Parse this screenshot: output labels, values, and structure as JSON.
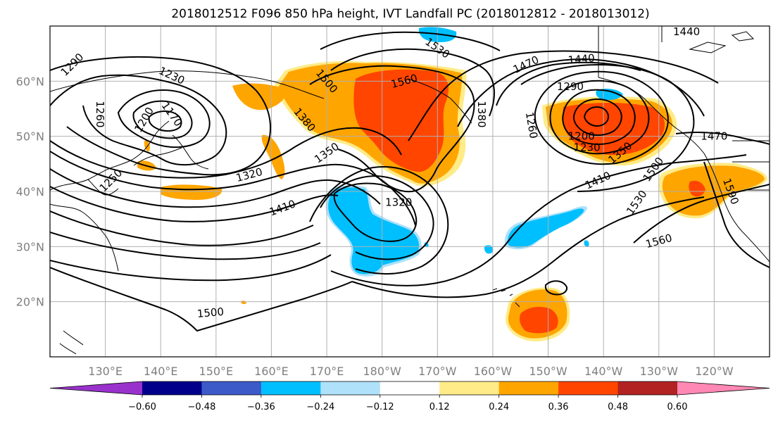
{
  "title": "2018012512 F096 850 hPa height, IVT Landfall PC (2018012812 - 2018013012)",
  "map": {
    "projection": "PlateCarree",
    "lon_range": [
      120,
      250
    ],
    "lat_range": [
      10,
      70
    ],
    "lon_ticks": [
      {
        "lon": 130,
        "label": "130°E"
      },
      {
        "lon": 140,
        "label": "140°E"
      },
      {
        "lon": 150,
        "label": "150°E"
      },
      {
        "lon": 160,
        "label": "160°E"
      },
      {
        "lon": 170,
        "label": "170°E"
      },
      {
        "lon": 180,
        "label": "180°W"
      },
      {
        "lon": 190,
        "label": "170°W"
      },
      {
        "lon": 200,
        "label": "160°W"
      },
      {
        "lon": 210,
        "label": "150°W"
      },
      {
        "lon": 220,
        "label": "140°W"
      },
      {
        "lon": 230,
        "label": "130°W"
      },
      {
        "lon": 240,
        "label": "120°W"
      }
    ],
    "lat_ticks": [
      {
        "lat": 20,
        "label": "20°N"
      },
      {
        "lat": 30,
        "label": "30°N"
      },
      {
        "lat": 40,
        "label": "40°N"
      },
      {
        "lat": 50,
        "label": "50°N"
      },
      {
        "lat": 60,
        "label": "60°N"
      }
    ],
    "grid": true,
    "shaded_field": "IVT Landfall PC",
    "contour_field": "850 hPa height",
    "contour_labels": [
      {
        "text": "1290",
        "lon": 124,
        "lat": 63,
        "rot": 45
      },
      {
        "text": "1230",
        "lon": 142,
        "lat": 61,
        "rot": -25
      },
      {
        "text": "1260",
        "lon": 129,
        "lat": 54,
        "rot": -90
      },
      {
        "text": "1200",
        "lon": 137,
        "lat": 53,
        "rot": 60
      },
      {
        "text": "1170",
        "lon": 142,
        "lat": 54,
        "rot": -55
      },
      {
        "text": "1250",
        "lon": 131,
        "lat": 42,
        "rot": 45
      },
      {
        "text": "1320",
        "lon": 156,
        "lat": 43,
        "rot": 15
      },
      {
        "text": "1410",
        "lon": 162,
        "lat": 37,
        "rot": 20
      },
      {
        "text": "1350",
        "lon": 170,
        "lat": 47,
        "rot": 35
      },
      {
        "text": "1380",
        "lon": 166,
        "lat": 53,
        "rot": -50
      },
      {
        "text": "1500",
        "lon": 170,
        "lat": 60,
        "rot": -50
      },
      {
        "text": "1560",
        "lon": 184,
        "lat": 60,
        "rot": 15
      },
      {
        "text": "1530",
        "lon": 190,
        "lat": 66,
        "rot": -35
      },
      {
        "text": "1320",
        "lon": 183,
        "lat": 38,
        "rot": 0
      },
      {
        "text": "1380",
        "lon": 198,
        "lat": 54,
        "rot": -90
      },
      {
        "text": "1470",
        "lon": 206,
        "lat": 63,
        "rot": 25
      },
      {
        "text": "1440",
        "lon": 216,
        "lat": 64,
        "rot": 5
      },
      {
        "text": "1290",
        "lon": 214,
        "lat": 59,
        "rot": 0
      },
      {
        "text": "1260",
        "lon": 207,
        "lat": 52,
        "rot": -80
      },
      {
        "text": "1200",
        "lon": 216,
        "lat": 50,
        "rot": 0
      },
      {
        "text": "1230",
        "lon": 217,
        "lat": 48,
        "rot": 0
      },
      {
        "text": "1350",
        "lon": 223,
        "lat": 47,
        "rot": 40
      },
      {
        "text": "1410",
        "lon": 219,
        "lat": 42,
        "rot": 25
      },
      {
        "text": "1500",
        "lon": 229,
        "lat": 44,
        "rot": 55
      },
      {
        "text": "1530",
        "lon": 226,
        "lat": 38,
        "rot": 55
      },
      {
        "text": "1560",
        "lon": 230,
        "lat": 31,
        "rot": 15
      },
      {
        "text": "1470",
        "lon": 240,
        "lat": 50,
        "rot": 0
      },
      {
        "text": "1440",
        "lon": 235,
        "lat": 69,
        "rot": 0
      },
      {
        "text": "1500",
        "lon": 149,
        "lat": 18,
        "rot": 5
      },
      {
        "text": "1590",
        "lon": 243,
        "lat": 40,
        "rot": -70
      }
    ]
  },
  "colorbar": {
    "levels": [
      -0.6,
      -0.48,
      -0.36,
      -0.24,
      -0.12,
      0.12,
      0.24,
      0.36,
      0.48,
      0.6
    ],
    "tick_labels": [
      "−0.60",
      "−0.48",
      "−0.36",
      "−0.24",
      "−0.12",
      "0.12",
      "0.24",
      "0.36",
      "0.48",
      "0.60"
    ],
    "colors": [
      "#9932cc",
      "#00008b",
      "#3c5ac8",
      "#00bfff",
      "#afe1fa",
      "#ffffff",
      "#ffeb87",
      "#ffa500",
      "#ff4500",
      "#b22222",
      "#ff88b4"
    ],
    "extend": "both"
  }
}
